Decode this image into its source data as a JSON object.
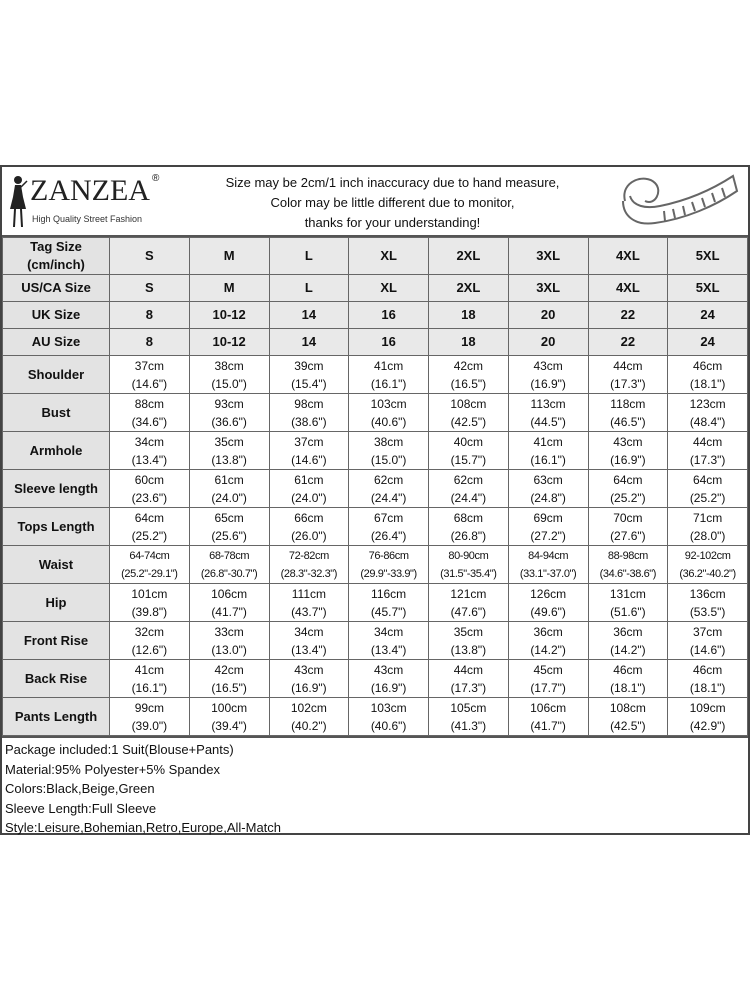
{
  "brand": {
    "name": "ZANZEA",
    "registered": "®",
    "tagline": "High Quality Street Fashion"
  },
  "notice": [
    "Size may be 2cm/1 inch inaccuracy due to hand measure,",
    "Color may be little different due to monitor,",
    "thanks for your understanding!"
  ],
  "icons": {
    "logo": "fashion-figure-logo",
    "tape": "measuring-tape-icon"
  },
  "size_rows": [
    {
      "label": "Tag Size (cm/inch)",
      "values": [
        "S",
        "M",
        "L",
        "XL",
        "2XL",
        "3XL",
        "4XL",
        "5XL"
      ]
    },
    {
      "label": "US/CA Size",
      "values": [
        "S",
        "M",
        "L",
        "XL",
        "2XL",
        "3XL",
        "4XL",
        "5XL"
      ]
    },
    {
      "label": "UK Size",
      "values": [
        "8",
        "10-12",
        "14",
        "16",
        "18",
        "20",
        "22",
        "24"
      ]
    },
    {
      "label": "AU Size",
      "values": [
        "8",
        "10-12",
        "14",
        "16",
        "18",
        "20",
        "22",
        "24"
      ]
    }
  ],
  "measure_rows": [
    {
      "label": "Shoulder",
      "cm": [
        "37cm",
        "38cm",
        "39cm",
        "41cm",
        "42cm",
        "43cm",
        "44cm",
        "46cm"
      ],
      "inch": [
        "(14.6\")",
        "(15.0\")",
        "(15.4\")",
        "(16.1\")",
        "(16.5\")",
        "(16.9\")",
        "(17.3\")",
        "(18.1\")"
      ]
    },
    {
      "label": "Bust",
      "cm": [
        "88cm",
        "93cm",
        "98cm",
        "103cm",
        "108cm",
        "113cm",
        "118cm",
        "123cm"
      ],
      "inch": [
        "(34.6\")",
        "(36.6\")",
        "(38.6\")",
        "(40.6\")",
        "(42.5\")",
        "(44.5\")",
        "(46.5\")",
        "(48.4\")"
      ]
    },
    {
      "label": "Armhole",
      "cm": [
        "34cm",
        "35cm",
        "37cm",
        "38cm",
        "40cm",
        "41cm",
        "43cm",
        "44cm"
      ],
      "inch": [
        "(13.4\")",
        "(13.8\")",
        "(14.6\")",
        "(15.0\")",
        "(15.7\")",
        "(16.1\")",
        "(16.9\")",
        "(17.3\")"
      ]
    },
    {
      "label": "Sleeve length",
      "cm": [
        "60cm",
        "61cm",
        "61cm",
        "62cm",
        "62cm",
        "63cm",
        "64cm",
        "64cm"
      ],
      "inch": [
        "(23.6\")",
        "(24.0\")",
        "(24.0\")",
        "(24.4\")",
        "(24.4\")",
        "(24.8\")",
        "(25.2\")",
        "(25.2\")"
      ]
    },
    {
      "label": "Tops Length",
      "cm": [
        "64cm",
        "65cm",
        "66cm",
        "67cm",
        "68cm",
        "69cm",
        "70cm",
        "71cm"
      ],
      "inch": [
        "(25.2\")",
        "(25.6\")",
        "(26.0\")",
        "(26.4\")",
        "(26.8\")",
        "(27.2\")",
        "(27.6\")",
        "(28.0\")"
      ]
    },
    {
      "label": "Waist",
      "cm": [
        "64-74cm",
        "68-78cm",
        "72-82cm",
        "76-86cm",
        "80-90cm",
        "84-94cm",
        "88-98cm",
        "92-102cm"
      ],
      "inch": [
        "(25.2\"-29.1\")",
        "(26.8\"-30.7\")",
        "(28.3\"-32.3\")",
        "(29.9\"-33.9\")",
        "(31.5\"-35.4\")",
        "(33.1\"-37.0\")",
        "(34.6\"-38.6\")",
        "(36.2\"-40.2\")"
      ]
    },
    {
      "label": "Hip",
      "cm": [
        "101cm",
        "106cm",
        "111cm",
        "116cm",
        "121cm",
        "126cm",
        "131cm",
        "136cm"
      ],
      "inch": [
        "(39.8\")",
        "(41.7\")",
        "(43.7\")",
        "(45.7\")",
        "(47.6\")",
        "(49.6\")",
        "(51.6\")",
        "(53.5\")"
      ]
    },
    {
      "label": "Front Rise",
      "cm": [
        "32cm",
        "33cm",
        "34cm",
        "34cm",
        "35cm",
        "36cm",
        "36cm",
        "37cm"
      ],
      "inch": [
        "(12.6\")",
        "(13.0\")",
        "(13.4\")",
        "(13.4\")",
        "(13.8\")",
        "(14.2\")",
        "(14.2\")",
        "(14.6\")"
      ]
    },
    {
      "label": "Back Rise",
      "cm": [
        "41cm",
        "42cm",
        "43cm",
        "43cm",
        "44cm",
        "45cm",
        "46cm",
        "46cm"
      ],
      "inch": [
        "(16.1\")",
        "(16.5\")",
        "(16.9\")",
        "(16.9\")",
        "(17.3\")",
        "(17.7\")",
        "(18.1\")",
        "(18.1\")"
      ]
    },
    {
      "label": "Pants Length",
      "cm": [
        "99cm",
        "100cm",
        "102cm",
        "103cm",
        "105cm",
        "106cm",
        "108cm",
        "109cm"
      ],
      "inch": [
        "(39.0\")",
        "(39.4\")",
        "(40.2\")",
        "(40.6\")",
        "(41.3\")",
        "(41.7\")",
        "(42.5\")",
        "(42.9\")"
      ]
    }
  ],
  "details": [
    "Package included:1 Suit(Blouse+Pants)",
    "Material:95% Polyester+5% Spandex",
    "Colors:Black,Beige,Green",
    "Sleeve Length:Full Sleeve",
    "Style:Leisure,Bohemian,Retro,Europe,All-Match"
  ]
}
